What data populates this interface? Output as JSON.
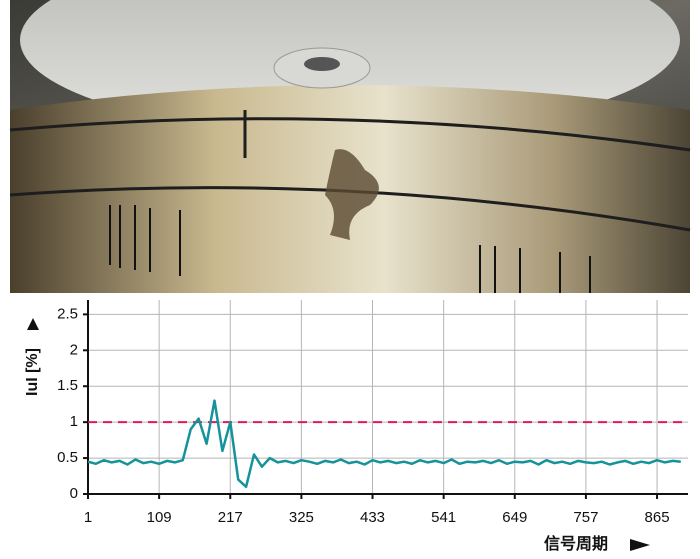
{
  "chart_data": {
    "type": "line",
    "y_label": "IuI [%]",
    "x_label": "信号周期",
    "xlim": [
      1,
      912
    ],
    "ylim": [
      0,
      2.7
    ],
    "xticks": [
      1,
      109,
      217,
      325,
      433,
      541,
      649,
      757,
      865
    ],
    "yticks": [
      0,
      0.5,
      1,
      1.5,
      2,
      2.5
    ],
    "grid": true,
    "threshold": 1,
    "threshold_color": "#e0195a",
    "x": [
      1,
      13,
      25,
      37,
      49,
      61,
      73,
      85,
      97,
      109,
      121,
      133,
      145,
      157,
      169,
      181,
      193,
      205,
      217,
      229,
      241,
      253,
      265,
      277,
      289,
      301,
      313,
      325,
      337,
      349,
      361,
      373,
      385,
      397,
      409,
      421,
      433,
      445,
      457,
      469,
      481,
      493,
      505,
      517,
      529,
      541,
      553,
      565,
      577,
      589,
      601,
      613,
      625,
      637,
      649,
      661,
      673,
      685,
      697,
      709,
      721,
      733,
      745,
      757,
      769,
      781,
      793,
      805,
      817,
      829,
      841,
      853,
      865,
      877,
      889,
      901
    ],
    "series": [
      {
        "color": "#14939b",
        "values": [
          0.45,
          0.42,
          0.47,
          0.44,
          0.46,
          0.41,
          0.48,
          0.43,
          0.45,
          0.42,
          0.46,
          0.44,
          0.47,
          0.9,
          1.05,
          0.7,
          1.3,
          0.6,
          1.0,
          0.2,
          0.1,
          0.55,
          0.38,
          0.5,
          0.44,
          0.46,
          0.43,
          0.47,
          0.45,
          0.42,
          0.46,
          0.44,
          0.48,
          0.43,
          0.45,
          0.41,
          0.47,
          0.44,
          0.46,
          0.43,
          0.45,
          0.42,
          0.47,
          0.44,
          0.46,
          0.43,
          0.48,
          0.42,
          0.45,
          0.44,
          0.46,
          0.43,
          0.47,
          0.42,
          0.45,
          0.44,
          0.46,
          0.41,
          0.47,
          0.43,
          0.45,
          0.42,
          0.46,
          0.44,
          0.43,
          0.45,
          0.41,
          0.44,
          0.46,
          0.42,
          0.45,
          0.43,
          0.47,
          0.44,
          0.46,
          0.45
        ]
      }
    ]
  }
}
